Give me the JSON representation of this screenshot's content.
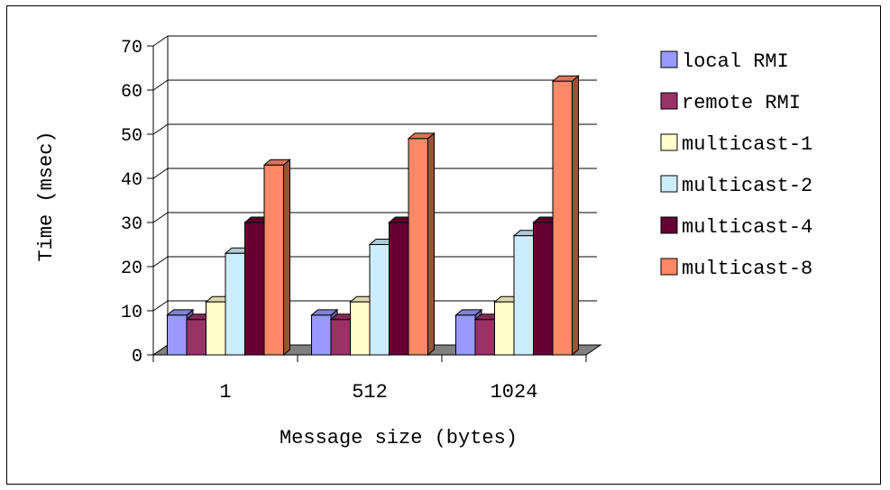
{
  "chart_data": {
    "type": "bar",
    "title": "",
    "xlabel": "Message size (bytes)",
    "ylabel": "Time (msec)",
    "ylim": [
      0,
      70
    ],
    "yticks": [
      "0",
      "10",
      "20",
      "30",
      "40",
      "50",
      "60",
      "70"
    ],
    "categories": [
      "1",
      "512",
      "1024"
    ],
    "grid": true,
    "legend": "right",
    "series": [
      {
        "name": "local RMI",
        "color": "#9999ff",
        "values": [
          9,
          9,
          9
        ]
      },
      {
        "name": "remote RMI",
        "color": "#993366",
        "values": [
          8,
          8,
          8
        ]
      },
      {
        "name": "multicast-1",
        "color": "#ffffcc",
        "values": [
          12,
          12,
          12
        ]
      },
      {
        "name": "multicast-2",
        "color": "#ccecff",
        "values": [
          23,
          25,
          27
        ]
      },
      {
        "name": "multicast-4",
        "color": "#660033",
        "values": [
          30,
          30,
          30
        ]
      },
      {
        "name": "multicast-8",
        "color": "#ff8866",
        "values": [
          43,
          49,
          62
        ]
      }
    ]
  }
}
